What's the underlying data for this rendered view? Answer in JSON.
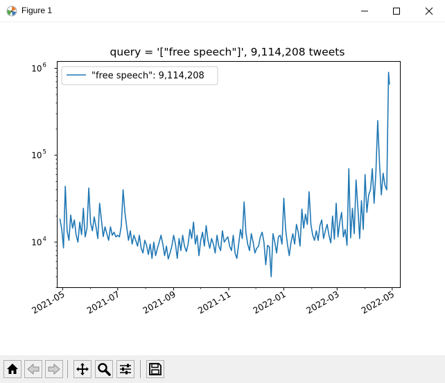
{
  "window": {
    "title": "Figure 1"
  },
  "toolbar": {
    "buttons": [
      "home-icon",
      "back-icon",
      "forward-icon",
      "pan-icon",
      "zoom-icon",
      "configure-subplots-icon",
      "save-icon"
    ]
  },
  "chart_data": {
    "type": "line",
    "title": "query = '[\"free speech\"]', 9,114,208 tweets",
    "xlabel": "",
    "ylabel": "",
    "yscale": "log",
    "ylim": [
      3000,
      1200000
    ],
    "xlim": [
      "2021-04-25",
      "2022-05-10"
    ],
    "x_ticks": [
      "2021-05",
      "2021-07",
      "2021-09",
      "2021-11",
      "2022-01",
      "2022-03",
      "2022-05"
    ],
    "y_ticks": [
      10000,
      100000,
      1000000
    ],
    "y_tick_labels": [
      "10",
      "10",
      "10"
    ],
    "y_tick_exponents": [
      "4",
      "5",
      "6"
    ],
    "legend": {
      "label": "\"free speech\": 9,114,208",
      "placement": "top-left"
    },
    "color": "#1f77b4",
    "series": [
      {
        "name": "\"free speech\": 9,114,208",
        "x": [
          "2021-04-28",
          "2021-04-30",
          "2021-05-02",
          "2021-05-04",
          "2021-05-06",
          "2021-05-08",
          "2021-05-10",
          "2021-05-12",
          "2021-05-14",
          "2021-05-16",
          "2021-05-18",
          "2021-05-20",
          "2021-05-22",
          "2021-05-24",
          "2021-05-26",
          "2021-05-28",
          "2021-05-30",
          "2021-06-01",
          "2021-06-03",
          "2021-06-05",
          "2021-06-07",
          "2021-06-09",
          "2021-06-11",
          "2021-06-13",
          "2021-06-15",
          "2021-06-17",
          "2021-06-19",
          "2021-06-21",
          "2021-06-23",
          "2021-06-25",
          "2021-06-27",
          "2021-06-29",
          "2021-07-01",
          "2021-07-03",
          "2021-07-05",
          "2021-07-07",
          "2021-07-09",
          "2021-07-11",
          "2021-07-13",
          "2021-07-15",
          "2021-07-17",
          "2021-07-19",
          "2021-07-21",
          "2021-07-23",
          "2021-07-25",
          "2021-07-27",
          "2021-07-29",
          "2021-07-31",
          "2021-08-02",
          "2021-08-04",
          "2021-08-06",
          "2021-08-08",
          "2021-08-10",
          "2021-08-12",
          "2021-08-14",
          "2021-08-16",
          "2021-08-18",
          "2021-08-20",
          "2021-08-22",
          "2021-08-24",
          "2021-08-26",
          "2021-08-28",
          "2021-08-30",
          "2021-09-01",
          "2021-09-03",
          "2021-09-05",
          "2021-09-07",
          "2021-09-09",
          "2021-09-11",
          "2021-09-13",
          "2021-09-15",
          "2021-09-17",
          "2021-09-19",
          "2021-09-21",
          "2021-09-23",
          "2021-09-25",
          "2021-09-27",
          "2021-09-29",
          "2021-10-01",
          "2021-10-03",
          "2021-10-05",
          "2021-10-07",
          "2021-10-09",
          "2021-10-11",
          "2021-10-13",
          "2021-10-15",
          "2021-10-17",
          "2021-10-19",
          "2021-10-21",
          "2021-10-23",
          "2021-10-25",
          "2021-10-27",
          "2021-10-29",
          "2021-10-31",
          "2021-11-02",
          "2021-11-04",
          "2021-11-06",
          "2021-11-08",
          "2021-11-10",
          "2021-11-12",
          "2021-11-14",
          "2021-11-16",
          "2021-11-18",
          "2021-11-20",
          "2021-11-22",
          "2021-11-24",
          "2021-11-26",
          "2021-11-28",
          "2021-11-30",
          "2021-12-02",
          "2021-12-04",
          "2021-12-06",
          "2021-12-08",
          "2021-12-10",
          "2021-12-12",
          "2021-12-14",
          "2021-12-16",
          "2021-12-18",
          "2021-12-20",
          "2021-12-22",
          "2021-12-24",
          "2021-12-26",
          "2021-12-28",
          "2021-12-30",
          "2022-01-01",
          "2022-01-03",
          "2022-01-05",
          "2022-01-07",
          "2022-01-09",
          "2022-01-11",
          "2022-01-13",
          "2022-01-15",
          "2022-01-17",
          "2022-01-19",
          "2022-01-21",
          "2022-01-23",
          "2022-01-25",
          "2022-01-27",
          "2022-01-29",
          "2022-01-31",
          "2022-02-02",
          "2022-02-04",
          "2022-02-06",
          "2022-02-08",
          "2022-02-10",
          "2022-02-12",
          "2022-02-14",
          "2022-02-16",
          "2022-02-18",
          "2022-02-20",
          "2022-02-22",
          "2022-02-24",
          "2022-02-26",
          "2022-02-28",
          "2022-03-02",
          "2022-03-04",
          "2022-03-06",
          "2022-03-08",
          "2022-03-10",
          "2022-03-12",
          "2022-03-14",
          "2022-03-16",
          "2022-03-18",
          "2022-03-20",
          "2022-03-22",
          "2022-03-24",
          "2022-03-26",
          "2022-03-28",
          "2022-03-30",
          "2022-04-01",
          "2022-04-03",
          "2022-04-05",
          "2022-04-07",
          "2022-04-09",
          "2022-04-11",
          "2022-04-13",
          "2022-04-15",
          "2022-04-17",
          "2022-04-19",
          "2022-04-21",
          "2022-04-23",
          "2022-04-25",
          "2022-04-27",
          "2022-04-28"
        ],
        "values": [
          18600,
          14200,
          8600,
          44000,
          13500,
          10500,
          20500,
          14500,
          18000,
          12000,
          10000,
          17000,
          12200,
          24500,
          11500,
          14500,
          42000,
          16500,
          13500,
          19500,
          15000,
          11000,
          28000,
          18000,
          11600,
          15000,
          12500,
          10500,
          15000,
          12000,
          13000,
          11500,
          12000,
          11500,
          15500,
          40000,
          22000,
          15000,
          10500,
          13500,
          9500,
          12000,
          10500,
          9000,
          12000,
          8500,
          7500,
          10500,
          9200,
          7200,
          9500,
          6500,
          10000,
          7000,
          8500,
          10000,
          12000,
          9500,
          7000,
          9000,
          6400,
          7500,
          9000,
          12000,
          9500,
          6500,
          11000,
          8000,
          12000,
          9000,
          7800,
          9500,
          14000,
          11000,
          17000,
          9500,
          12000,
          7000,
          10500,
          13000,
          9000,
          15500,
          10500,
          8500,
          11000,
          9500,
          7500,
          12000,
          9000,
          8000,
          13500,
          10000,
          10800,
          11500,
          9000,
          8000,
          12000,
          7500,
          6500,
          9500,
          14000,
          11000,
          29000,
          13000,
          9500,
          8000,
          12500,
          10000,
          7500,
          8500,
          9000,
          11500,
          13000,
          10000,
          5500,
          9200,
          8800,
          4000,
          12500,
          10000,
          7500,
          11500,
          12000,
          9500,
          32000,
          14000,
          9500,
          7000,
          10000,
          12500,
          9500,
          16000,
          13000,
          9000,
          24000,
          14500,
          21000,
          16000,
          38000,
          16000,
          12000,
          10500,
          13500,
          10500,
          15500,
          18000,
          11000,
          13500,
          16000,
          12000,
          9800,
          20000,
          10800,
          28000,
          11500,
          17000,
          22000,
          11500,
          14000,
          9200,
          70000,
          11200,
          24500,
          12500,
          52000,
          25000,
          11000,
          30000,
          14000,
          60000,
          22000,
          35000,
          40000,
          70000,
          28000,
          64000,
          250000,
          80000,
          35000,
          62000,
          45000,
          40000,
          900000,
          650000
        ]
      }
    ]
  }
}
